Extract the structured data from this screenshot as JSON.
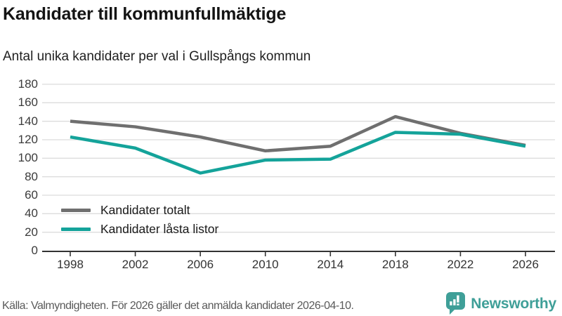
{
  "title": "Kandidater till kommunfullmäktige",
  "subtitle": "Antal unika kandidater per val i Gullspångs kommun",
  "footer": {
    "source": "Källa: Valmyndigheten. För 2026 gäller det anmälda kandidater 2026-04-10.",
    "brand": "Newsworthy"
  },
  "colors": {
    "series_total": "#6f6f6f",
    "series_locked": "#14a39a",
    "grid": "#dcdcdc",
    "axis": "#333333",
    "brand_teal": "#3f9f98"
  },
  "chart_data": {
    "type": "line",
    "x": [
      1998,
      2002,
      2006,
      2010,
      2014,
      2018,
      2022,
      2026
    ],
    "series": [
      {
        "name": "Kandidater totalt",
        "color": "#6f6f6f",
        "values": [
          140,
          134,
          123,
          108,
          113,
          145,
          127,
          114
        ]
      },
      {
        "name": "Kandidater låsta listor",
        "color": "#14a39a",
        "values": [
          123,
          111,
          84,
          98,
          99,
          128,
          126,
          113
        ]
      }
    ],
    "title": "Kandidater till kommunfullmäktige",
    "subtitle": "Antal unika kandidater per val i Gullspångs kommun",
    "xlabel": "",
    "ylabel": "",
    "ylim": [
      0,
      180
    ],
    "yticks": [
      0,
      20,
      40,
      60,
      80,
      100,
      120,
      140,
      160,
      180
    ],
    "grid": "horizontal",
    "legend_position": "inside-bottom-left"
  }
}
